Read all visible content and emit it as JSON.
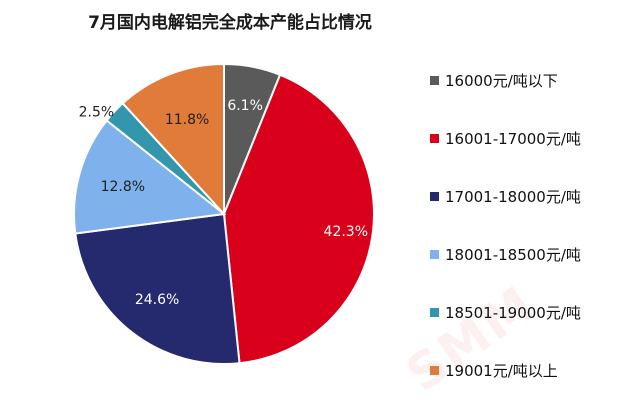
{
  "chart_data": {
    "type": "pie",
    "title": "7月国内电解铝完全成本产能占比情况",
    "slices": [
      {
        "name": "16000元/吨以下",
        "value": 6.1,
        "label": "6.1%",
        "color": "#5a5a5a"
      },
      {
        "name": "16001-17000元/吨",
        "value": 42.3,
        "label": "42.3%",
        "color": "#d9001b"
      },
      {
        "name": "17001-18000元/吨",
        "value": 24.6,
        "label": "24.6%",
        "color": "#252a6e"
      },
      {
        "name": "18001-18500元/吨",
        "value": 12.8,
        "label": "12.8%",
        "color": "#7fb2ec"
      },
      {
        "name": "18501-19000元/吨",
        "value": 2.5,
        "label": "2.5%",
        "color": "#3296ac"
      },
      {
        "name": "19001元/吨以上",
        "value": 11.8,
        "label": "11.8%",
        "color": "#e07b39"
      }
    ],
    "legend_position": "right"
  }
}
